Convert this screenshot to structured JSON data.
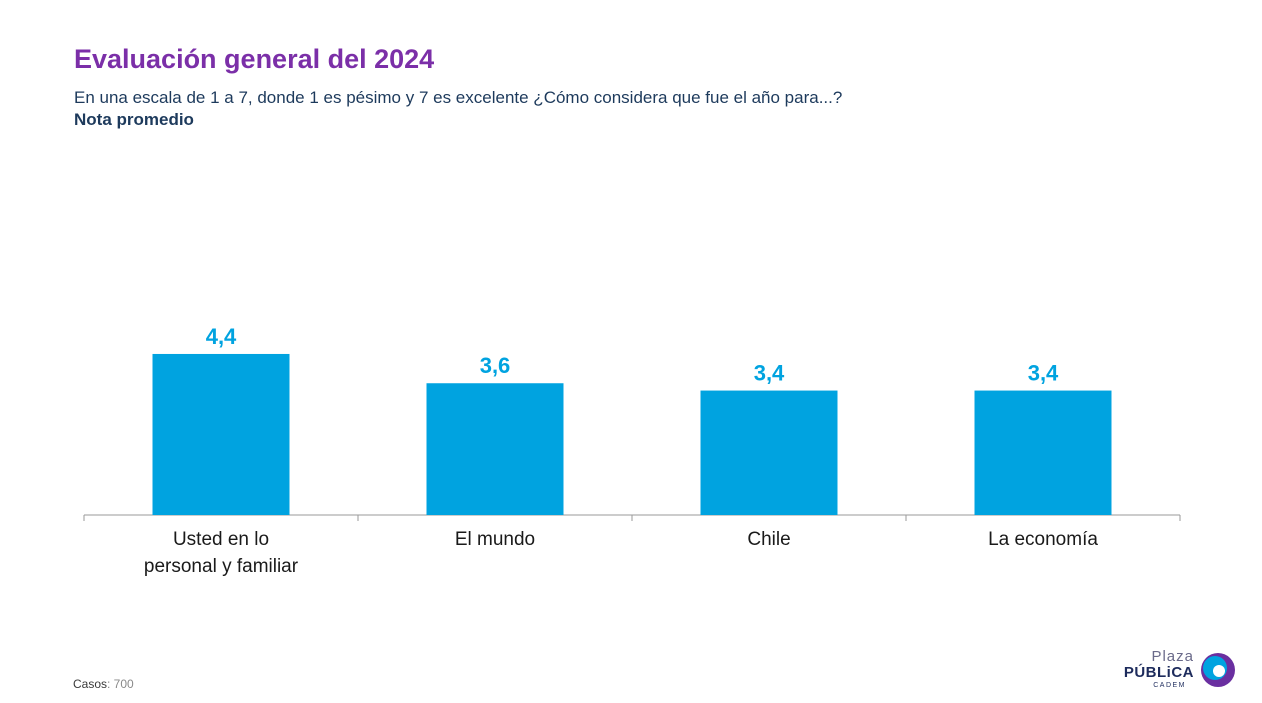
{
  "header": {
    "title": "Evaluación general del 2024",
    "subtitle": "En una escala de 1 a 7, donde 1 es pésimo y 7 es excelente ¿Cómo considera que fue el año para...?",
    "note": "Nota promedio"
  },
  "chart_data": {
    "type": "bar",
    "categories": [
      [
        "Usted en lo",
        "personal y familiar"
      ],
      [
        "El mundo"
      ],
      [
        "Chile"
      ],
      [
        "La economía"
      ]
    ],
    "values": [
      4.4,
      3.6,
      3.4,
      3.4
    ],
    "value_labels": [
      "4,4",
      "3,6",
      "3,4",
      "3,4"
    ],
    "ylim": [
      0,
      7
    ],
    "grid": false,
    "bar_color": "#00a3e0",
    "label_color": "#00a3e0"
  },
  "footer": {
    "cases_label": "Casos",
    "cases_value": ": 700"
  },
  "logo": {
    "line1": "Plaza",
    "line2": "PÚBLiCA",
    "line3": "CADEM"
  },
  "colors": {
    "title": "#7b2fa8",
    "text": "#1d3a5c",
    "axis": "#9a9a9a"
  }
}
